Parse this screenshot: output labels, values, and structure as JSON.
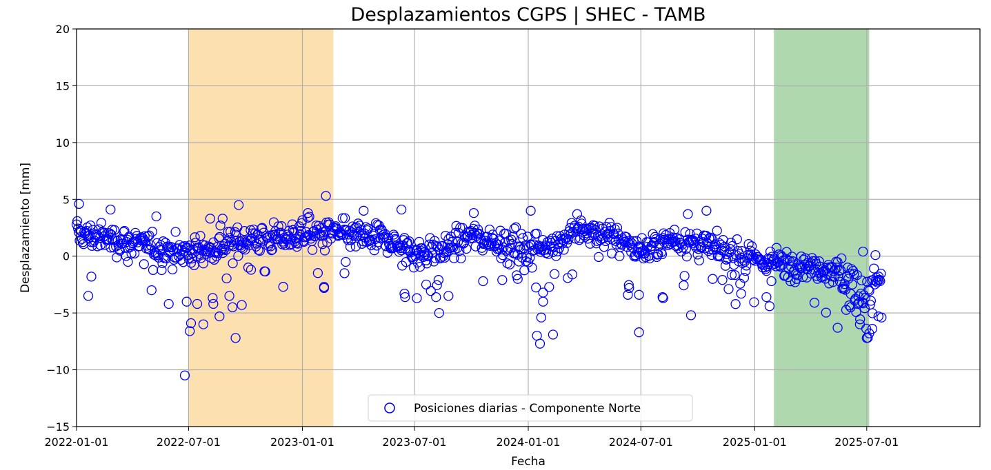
{
  "chart_data": {
    "type": "scatter",
    "title": "Desplazamientos CGPS | SHEC - TAMB",
    "xlabel": "Fecha",
    "ylabel": "Desplazamiento [mm]",
    "x_axis": "date",
    "xlim": [
      "2022-01-01",
      "2025-12-31"
    ],
    "ylim": [
      -15,
      20
    ],
    "yticks": [
      -15,
      -10,
      -5,
      0,
      5,
      10,
      15,
      20
    ],
    "ytick_labels": [
      "−15",
      "−10",
      "−5",
      "0",
      "5",
      "10",
      "15",
      "20"
    ],
    "xticks": [
      "2022-01-01",
      "2022-07-01",
      "2023-01-01",
      "2023-07-01",
      "2024-01-01",
      "2024-07-01",
      "2025-01-01",
      "2025-07-01"
    ],
    "grid": true,
    "legend_position": "bottom-center",
    "shaded_periods": [
      {
        "start": "2022-07-01",
        "end": "2023-02-20",
        "color": "#fde0b0"
      },
      {
        "start": "2025-02-01",
        "end": "2025-07-05",
        "color": "#b0d8ae"
      }
    ],
    "series": [
      {
        "name": "Posiciones diarias - Componente Norte",
        "color": "#0000ff",
        "marker": "open-circle",
        "trend": [
          [
            "2022-01-01",
            2.0
          ],
          [
            "2022-02-15",
            1.6
          ],
          [
            "2022-04-01",
            1.2
          ],
          [
            "2022-05-15",
            0.7
          ],
          [
            "2022-07-01",
            0.3
          ],
          [
            "2022-08-15",
            0.8
          ],
          [
            "2022-10-01",
            1.5
          ],
          [
            "2022-11-15",
            1.6
          ],
          [
            "2023-01-01",
            1.9
          ],
          [
            "2023-02-15",
            2.0
          ],
          [
            "2023-04-01",
            1.8
          ],
          [
            "2023-05-15",
            1.5
          ],
          [
            "2023-07-01",
            0.3
          ],
          [
            "2023-08-15",
            0.5
          ],
          [
            "2023-10-01",
            1.8
          ],
          [
            "2023-11-15",
            1.3
          ],
          [
            "2024-01-01",
            0.6
          ],
          [
            "2024-02-15",
            1.3
          ],
          [
            "2024-04-01",
            2.2
          ],
          [
            "2024-05-15",
            2.0
          ],
          [
            "2024-07-01",
            0.4
          ],
          [
            "2024-08-15",
            1.6
          ],
          [
            "2024-10-01",
            1.0
          ],
          [
            "2024-11-15",
            0.4
          ],
          [
            "2025-01-01",
            -0.3
          ],
          [
            "2025-02-15",
            -0.6
          ],
          [
            "2025-04-01",
            -0.8
          ],
          [
            "2025-05-15",
            -1.3
          ],
          [
            "2025-06-15",
            -3.0
          ],
          [
            "2025-07-01",
            -3.6
          ],
          [
            "2025-07-25",
            -1.5
          ]
        ],
        "outliers": [
          [
            "2022-01-05",
            4.6
          ],
          [
            "2022-01-20",
            -3.5
          ],
          [
            "2022-01-25",
            -1.8
          ],
          [
            "2022-02-25",
            4.1
          ],
          [
            "2022-03-25",
            -0.5
          ],
          [
            "2022-04-20",
            -0.7
          ],
          [
            "2022-05-10",
            3.5
          ],
          [
            "2022-05-30",
            -4.2
          ],
          [
            "2022-06-25",
            -10.5
          ],
          [
            "2022-06-28",
            -4.0
          ],
          [
            "2022-07-03",
            -6.6
          ],
          [
            "2022-07-05",
            -5.9
          ],
          [
            "2022-07-15",
            -4.2
          ],
          [
            "2022-07-25",
            -6.0
          ],
          [
            "2022-08-05",
            3.3
          ],
          [
            "2022-08-10",
            -4.2
          ],
          [
            "2022-08-20",
            -5.3
          ],
          [
            "2022-08-25",
            3.3
          ],
          [
            "2022-09-05",
            -3.5
          ],
          [
            "2022-09-10",
            -4.5
          ],
          [
            "2022-09-15",
            -7.2
          ],
          [
            "2022-09-20",
            4.5
          ],
          [
            "2022-09-25",
            -4.3
          ],
          [
            "2022-10-10",
            -1.2
          ],
          [
            "2022-12-01",
            -2.7
          ],
          [
            "2023-01-10",
            3.8
          ],
          [
            "2023-02-05",
            -2.8
          ],
          [
            "2023-02-05",
            -2.7
          ],
          [
            "2023-02-08",
            5.3
          ],
          [
            "2023-03-10",
            -1.5
          ],
          [
            "2023-03-12",
            -0.5
          ],
          [
            "2023-04-10",
            4.0
          ],
          [
            "2023-06-10",
            4.1
          ],
          [
            "2023-06-15",
            -3.3
          ],
          [
            "2023-06-16",
            -3.6
          ],
          [
            "2023-07-05",
            -3.7
          ],
          [
            "2023-07-20",
            -2.5
          ],
          [
            "2023-08-05",
            -3.6
          ],
          [
            "2023-08-10",
            -5.0
          ],
          [
            "2023-08-25",
            -3.5
          ],
          [
            "2023-10-05",
            3.8
          ],
          [
            "2023-10-20",
            -2.2
          ],
          [
            "2023-11-20",
            -2.1
          ],
          [
            "2023-12-15",
            -2.0
          ],
          [
            "2024-01-05",
            4.0
          ],
          [
            "2024-01-15",
            -7.0
          ],
          [
            "2024-01-20",
            -7.7
          ],
          [
            "2024-01-22",
            -5.4
          ],
          [
            "2024-01-25",
            -4.0
          ],
          [
            "2024-01-25",
            -3.2
          ],
          [
            "2024-02-10",
            -6.9
          ],
          [
            "2024-03-20",
            3.7
          ],
          [
            "2024-06-10",
            -3.4
          ],
          [
            "2024-06-12",
            -2.8
          ],
          [
            "2024-06-28",
            -6.7
          ],
          [
            "2024-06-28",
            -3.4
          ],
          [
            "2024-08-05",
            -3.6
          ],
          [
            "2024-08-06",
            -3.7
          ],
          [
            "2024-09-15",
            3.7
          ],
          [
            "2024-09-20",
            -5.2
          ],
          [
            "2024-10-15",
            4.0
          ],
          [
            "2024-10-25",
            -2.0
          ],
          [
            "2024-12-10",
            -3.3
          ],
          [
            "2025-01-20",
            -3.6
          ],
          [
            "2025-01-25",
            -4.4
          ],
          [
            "2025-01-28",
            -2.2
          ],
          [
            "2025-05-15",
            -6.3
          ],
          [
            "2025-06-05",
            -4.5
          ],
          [
            "2025-06-20",
            -6.0
          ],
          [
            "2025-07-01",
            -7.2
          ],
          [
            "2025-07-05",
            -6.8
          ],
          [
            "2025-07-10",
            -6.4
          ],
          [
            "2025-07-15",
            0.1
          ],
          [
            "2025-07-20",
            -5.3
          ],
          [
            "2025-07-25",
            -5.4
          ],
          [
            "2025-06-25",
            0.4
          ]
        ]
      }
    ]
  }
}
